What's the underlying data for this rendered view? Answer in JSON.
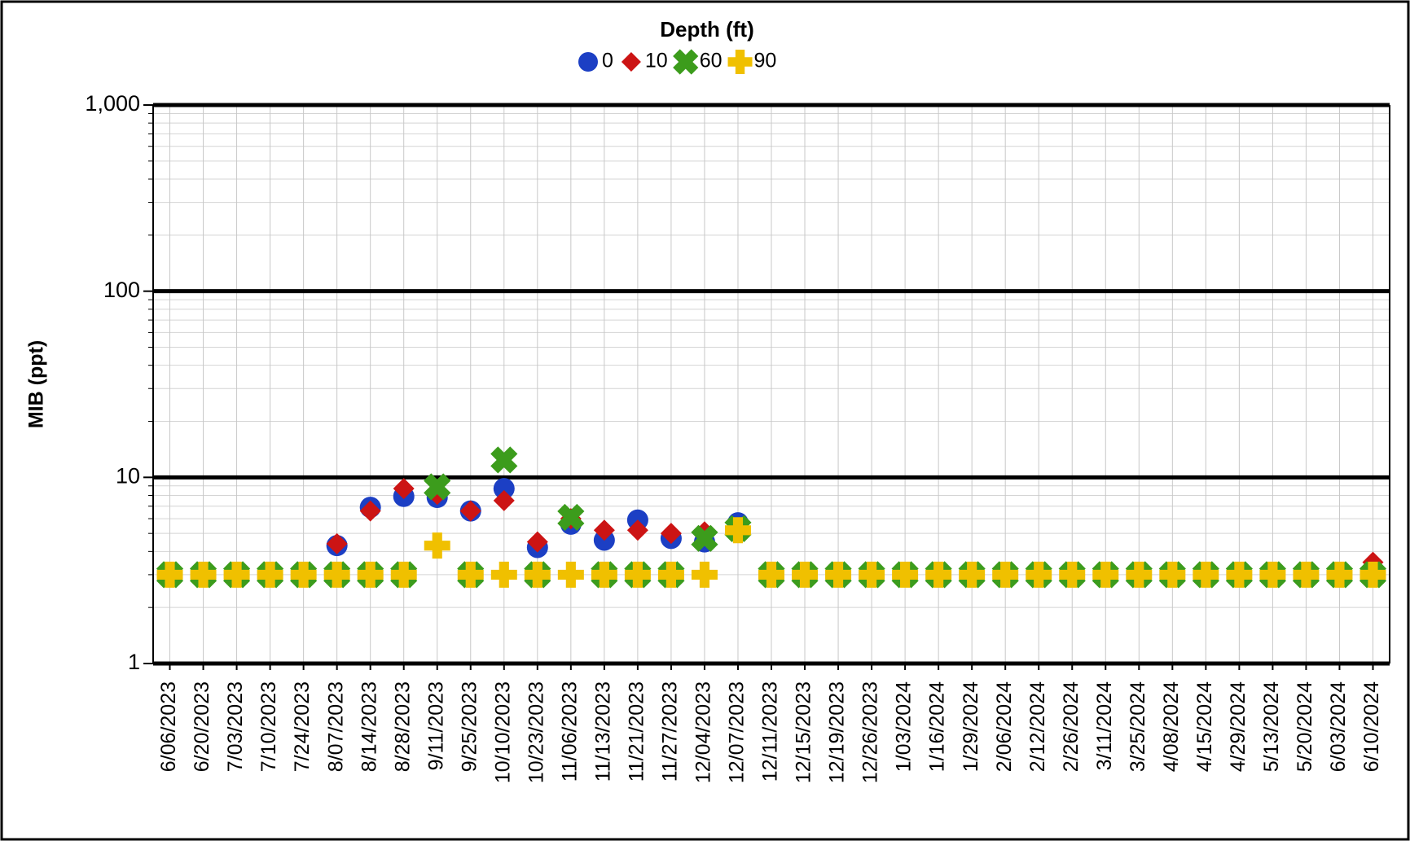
{
  "chart_data": {
    "type": "scatter",
    "legend_title": "Depth (ft)",
    "ylabel": "MIB (ppt)",
    "log_y": true,
    "grid": true,
    "minor_grid": true,
    "legend": "top",
    "categories": [
      "6/06/2023",
      "6/20/2023",
      "7/03/2023",
      "7/10/2023",
      "7/24/2023",
      "8/07/2023",
      "8/14/2023",
      "8/28/2023",
      "9/11/2023",
      "9/25/2023",
      "10/10/2023",
      "10/23/2023",
      "11/06/2023",
      "11/13/2023",
      "11/21/2023",
      "11/27/2023",
      "12/04/2023",
      "12/07/2023",
      "12/11/2023",
      "12/15/2023",
      "12/19/2023",
      "12/26/2023",
      "1/03/2024",
      "1/16/2024",
      "1/29/2024",
      "2/06/2024",
      "2/12/2024",
      "2/26/2024",
      "3/11/2024",
      "3/25/2024",
      "4/08/2024",
      "4/15/2024",
      "4/29/2024",
      "5/13/2024",
      "5/20/2024",
      "6/03/2024",
      "6/10/2024"
    ],
    "ylim": [
      1,
      1000
    ],
    "yticks": [
      1,
      10,
      100,
      {
        "value": 1000,
        "label": "1,000"
      }
    ],
    "series": [
      {
        "name": "0",
        "color": "#1c3fc4",
        "marker": "circle",
        "values": [
          3,
          3,
          3,
          3,
          3,
          4.3,
          6.9,
          7.9,
          7.8,
          6.6,
          8.7,
          4.2,
          5.6,
          4.6,
          5.9,
          4.7,
          4.5,
          5.7,
          3,
          3,
          3,
          3,
          3,
          3,
          3,
          3,
          3,
          3,
          3,
          3,
          3,
          3,
          3,
          3,
          3,
          3,
          3
        ]
      },
      {
        "name": "10",
        "color": "#cc1414",
        "marker": "diamond",
        "values": [
          3,
          3,
          3,
          3,
          3,
          4.4,
          6.6,
          8.7,
          8.1,
          6.6,
          7.5,
          4.5,
          6.0,
          5.2,
          5.2,
          5.0,
          5.1,
          5.2,
          3,
          3,
          3,
          3,
          3,
          3,
          3,
          3,
          3,
          3,
          3,
          3,
          3,
          3,
          3,
          3,
          3,
          3,
          3.5
        ]
      },
      {
        "name": "60",
        "color": "#3c9c1c",
        "marker": "x",
        "values": [
          3,
          3,
          3,
          3,
          3,
          3,
          3,
          3,
          8.9,
          3,
          12.4,
          3,
          6.1,
          3,
          3,
          3,
          4.7,
          5.3,
          3,
          3,
          3,
          3,
          3,
          3,
          3,
          3,
          3,
          3,
          3,
          3,
          3,
          3,
          3,
          3,
          3,
          3,
          3
        ]
      },
      {
        "name": "90",
        "color": "#f0c000",
        "marker": "plus",
        "values": [
          3,
          3,
          3,
          3,
          3,
          3,
          3,
          3,
          4.3,
          3,
          3,
          3,
          3,
          3,
          3,
          3,
          3,
          5.2,
          3,
          3,
          3,
          3,
          3,
          3,
          3,
          3,
          3,
          3,
          3,
          3,
          3,
          3,
          3,
          3,
          3,
          3,
          3
        ]
      }
    ]
  }
}
